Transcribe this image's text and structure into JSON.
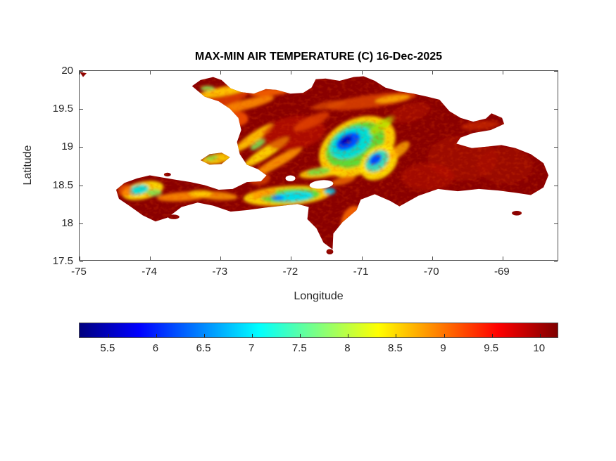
{
  "figure": {
    "background": "#FFFFFF",
    "text_color": "#262626",
    "axis_color": "#4D4D4D"
  },
  "chart_data": {
    "type": "heatmap",
    "title": "MAX-MIN AIR TEMPERATURE (C) 16-Dec-2025",
    "xlabel": "Longitude",
    "ylabel": "Latitude",
    "xlim": [
      -75,
      -68.2
    ],
    "ylim": [
      17.5,
      20
    ],
    "xticks": [
      -75,
      -74,
      -73,
      -72,
      -71,
      -70,
      -69
    ],
    "yticks": [
      17.5,
      18,
      18.5,
      19,
      19.5,
      20
    ],
    "grid": false,
    "region": "Hispaniola (Haiti and Dominican Republic)",
    "units": "C",
    "colorbar": {
      "orientation": "horizontal",
      "colormap": "jet",
      "clim": [
        5.2,
        10.2
      ],
      "ticks": [
        5.5,
        6,
        6.5,
        7,
        7.5,
        8,
        8.5,
        9,
        9.5,
        10
      ],
      "stops": [
        {
          "pos": 0,
          "color": "#00007F"
        },
        {
          "pos": 0.125,
          "color": "#0000FF"
        },
        {
          "pos": 0.25,
          "color": "#0080FF"
        },
        {
          "pos": 0.375,
          "color": "#00FFFF"
        },
        {
          "pos": 0.5,
          "color": "#80FF80"
        },
        {
          "pos": 0.625,
          "color": "#FFFF00"
        },
        {
          "pos": 0.75,
          "color": "#FF8000"
        },
        {
          "pos": 0.875,
          "color": "#FF0000"
        },
        {
          "pos": 1,
          "color": "#7F0000"
        }
      ]
    },
    "sampled_values": [
      {
        "lon": -71.2,
        "lat": 19.08,
        "value": 5.4,
        "note": "Cordillera Central cold core (dark blue)"
      },
      {
        "lon": -70.8,
        "lat": 18.82,
        "value": 6.1,
        "note": "secondary blue core"
      },
      {
        "lon": -71.95,
        "lat": 18.35,
        "value": 6.9,
        "note": "Selle-Bahoruco range cyan band"
      },
      {
        "lon": -74.15,
        "lat": 18.42,
        "value": 7.0,
        "note": "western peninsula cyan patch"
      },
      {
        "lon": -71.05,
        "lat": 19.0,
        "value": 8.3,
        "note": "yellow-green mountain halo"
      },
      {
        "lon": -72.4,
        "lat": 19.0,
        "value": 8.6,
        "note": "yellow ridge streaks"
      },
      {
        "lon": -73.0,
        "lat": 19.65,
        "value": 9.2,
        "note": "orange northern ridges"
      },
      {
        "lon": -70.0,
        "lat": 18.8,
        "value": 10.0,
        "note": "lowlands dark red (>=10)"
      }
    ],
    "map": {
      "base_color": "#8A0000",
      "speckle_color": "#E84A00",
      "lake_color": "#FFFFFF",
      "polygons": {
        "main": [
          [
            -73.4,
            19.8
          ],
          [
            -73.28,
            19.88
          ],
          [
            -73.1,
            19.92
          ],
          [
            -72.98,
            19.88
          ],
          [
            -72.85,
            19.77
          ],
          [
            -72.7,
            19.72
          ],
          [
            -72.52,
            19.7
          ],
          [
            -72.35,
            19.76
          ],
          [
            -72.2,
            19.75
          ],
          [
            -72.0,
            19.7
          ],
          [
            -71.82,
            19.71
          ],
          [
            -71.7,
            19.78
          ],
          [
            -71.64,
            19.89
          ],
          [
            -71.5,
            19.9
          ],
          [
            -71.3,
            19.87
          ],
          [
            -71.1,
            19.92
          ],
          [
            -70.96,
            19.93
          ],
          [
            -70.8,
            19.87
          ],
          [
            -70.65,
            19.78
          ],
          [
            -70.45,
            19.73
          ],
          [
            -70.25,
            19.7
          ],
          [
            -70.05,
            19.66
          ],
          [
            -69.88,
            19.62
          ],
          [
            -69.74,
            19.47
          ],
          [
            -69.58,
            19.38
          ],
          [
            -69.4,
            19.33
          ],
          [
            -69.22,
            19.37
          ],
          [
            -69.14,
            19.44
          ],
          [
            -68.99,
            19.38
          ],
          [
            -68.96,
            19.3
          ],
          [
            -69.15,
            19.22
          ],
          [
            -69.4,
            19.18
          ],
          [
            -69.58,
            19.12
          ],
          [
            -69.64,
            19.04
          ],
          [
            -69.42,
            18.98
          ],
          [
            -69.2,
            19.0
          ],
          [
            -69.0,
            19.02
          ],
          [
            -68.8,
            18.98
          ],
          [
            -68.58,
            18.9
          ],
          [
            -68.4,
            18.78
          ],
          [
            -68.33,
            18.62
          ],
          [
            -68.4,
            18.46
          ],
          [
            -68.58,
            18.36
          ],
          [
            -68.8,
            18.39
          ],
          [
            -69.05,
            18.42
          ],
          [
            -69.32,
            18.44
          ],
          [
            -69.62,
            18.41
          ],
          [
            -69.9,
            18.44
          ],
          [
            -70.18,
            18.35
          ],
          [
            -70.45,
            18.21
          ],
          [
            -70.58,
            18.28
          ],
          [
            -70.8,
            18.37
          ],
          [
            -71.0,
            18.3
          ],
          [
            -71.06,
            18.16
          ],
          [
            -71.26,
            18.0
          ],
          [
            -71.39,
            17.85
          ],
          [
            -71.4,
            17.64
          ],
          [
            -71.53,
            17.73
          ],
          [
            -71.63,
            17.92
          ],
          [
            -71.76,
            18.04
          ],
          [
            -71.74,
            18.2
          ],
          [
            -71.9,
            18.24
          ],
          [
            -72.1,
            18.22
          ],
          [
            -72.38,
            18.19
          ],
          [
            -72.62,
            18.16
          ],
          [
            -72.85,
            18.14
          ],
          [
            -73.1,
            18.22
          ],
          [
            -73.32,
            18.26
          ],
          [
            -73.55,
            18.2
          ],
          [
            -73.75,
            18.06
          ],
          [
            -73.92,
            18.01
          ],
          [
            -74.1,
            18.09
          ],
          [
            -74.28,
            18.21
          ],
          [
            -74.44,
            18.31
          ],
          [
            -74.48,
            18.43
          ],
          [
            -74.36,
            18.52
          ],
          [
            -74.18,
            18.58
          ],
          [
            -74.0,
            18.62
          ],
          [
            -73.82,
            18.59
          ],
          [
            -73.62,
            18.56
          ],
          [
            -73.42,
            18.53
          ],
          [
            -73.22,
            18.49
          ],
          [
            -73.02,
            18.43
          ],
          [
            -72.82,
            18.44
          ],
          [
            -72.62,
            18.53
          ],
          [
            -72.42,
            18.54
          ],
          [
            -72.34,
            18.62
          ],
          [
            -72.46,
            18.7
          ],
          [
            -72.62,
            18.76
          ],
          [
            -72.72,
            18.9
          ],
          [
            -72.76,
            19.06
          ],
          [
            -72.7,
            19.22
          ],
          [
            -72.74,
            19.38
          ],
          [
            -72.86,
            19.5
          ],
          [
            -73.02,
            19.6
          ],
          [
            -73.22,
            19.66
          ]
        ],
        "gonave": [
          [
            -73.28,
            18.82
          ],
          [
            -73.15,
            18.9
          ],
          [
            -72.98,
            18.92
          ],
          [
            -72.86,
            18.86
          ],
          [
            -72.98,
            18.77
          ],
          [
            -73.15,
            18.76
          ]
        ],
        "speck": [
          [
            -75.0,
            19.99
          ],
          [
            -74.9,
            19.97
          ],
          [
            -74.95,
            19.92
          ]
        ]
      },
      "islets": [
        {
          "name": "saona",
          "lon": -68.78,
          "lat": 18.12,
          "rx": 0.07,
          "ry": 0.03
        },
        {
          "name": "beata",
          "lon": -71.44,
          "lat": 17.61,
          "rx": 0.05,
          "ry": 0.035
        },
        {
          "name": "ile-a-vache",
          "lon": -73.66,
          "lat": 18.07,
          "rx": 0.08,
          "ry": 0.03
        },
        {
          "name": "cayemites",
          "lon": -73.75,
          "lat": 18.63,
          "rx": 0.05,
          "ry": 0.025
        }
      ],
      "lakes": [
        [
          -71.56,
          18.5,
          0.17,
          0.055,
          -5
        ],
        [
          -72.0,
          18.58,
          0.07,
          0.04,
          0
        ]
      ],
      "blobs": [
        [
          -73.05,
          19.63,
          0.5,
          0.14,
          -18,
          "#E04000",
          0.85
        ],
        [
          -72.95,
          19.73,
          0.38,
          0.055,
          -10,
          "#FFC800",
          0.95
        ],
        [
          -73.18,
          19.77,
          0.1,
          0.035,
          0,
          "#90E050",
          0.9
        ],
        [
          -72.62,
          19.56,
          0.4,
          0.065,
          -14,
          "#FF8C00",
          0.9
        ],
        [
          -72.3,
          19.72,
          0.28,
          0.05,
          -5,
          "#FF6A00",
          0.85
        ],
        [
          -72.76,
          19.37,
          0.16,
          0.1,
          0,
          "#FF5A00",
          0.8
        ],
        [
          -72.52,
          19.12,
          0.34,
          0.065,
          -35,
          "#FFC000",
          0.95
        ],
        [
          -72.34,
          18.93,
          0.38,
          0.07,
          -33,
          "#FFD700",
          0.95
        ],
        [
          -72.46,
          19.03,
          0.13,
          0.045,
          -35,
          "#80DC50",
          0.9
        ],
        [
          -72.18,
          18.8,
          0.4,
          0.065,
          -30,
          "#FF9900",
          0.9
        ],
        [
          -71.95,
          19.18,
          0.45,
          0.22,
          -10,
          "#C81800",
          0.55
        ],
        [
          -70.85,
          19.6,
          0.65,
          0.085,
          -8,
          "#E04800",
          0.8
        ],
        [
          -70.55,
          19.63,
          0.25,
          0.045,
          -8,
          "#FFB000",
          0.85
        ],
        [
          -71.45,
          19.55,
          0.25,
          0.05,
          -10,
          "#E05000",
          0.7
        ],
        [
          -71.7,
          19.33,
          0.28,
          0.07,
          -25,
          "#E84800",
          0.75
        ],
        [
          -71.05,
          19.0,
          0.58,
          0.36,
          -28,
          "#FFD700",
          0.95
        ],
        [
          -71.08,
          19.02,
          0.45,
          0.27,
          -28,
          "#58D838",
          0.95
        ],
        [
          -71.14,
          19.05,
          0.32,
          0.185,
          -28,
          "#00DCDC",
          0.95
        ],
        [
          -71.18,
          19.07,
          0.185,
          0.1,
          -28,
          "#0048FF",
          0.95
        ],
        [
          -71.21,
          19.08,
          0.095,
          0.05,
          -28,
          "#0000BE",
          0.95
        ],
        [
          -70.7,
          19.28,
          0.22,
          0.06,
          -35,
          "#B0E000",
          0.8
        ],
        [
          -70.74,
          18.79,
          0.3,
          0.2,
          -40,
          "#FFE000",
          0.95
        ],
        [
          -70.77,
          18.81,
          0.19,
          0.12,
          -40,
          "#30D8C0",
          0.95
        ],
        [
          -70.79,
          18.83,
          0.1,
          0.06,
          -40,
          "#0040FF",
          0.95
        ],
        [
          -70.45,
          18.95,
          0.18,
          0.07,
          -40,
          "#FFB000",
          0.8
        ],
        [
          -71.55,
          18.66,
          0.33,
          0.07,
          -8,
          "#FFD000",
          0.9
        ],
        [
          -71.6,
          18.67,
          0.17,
          0.045,
          -8,
          "#70DC40",
          0.9
        ],
        [
          -71.25,
          18.55,
          0.18,
          0.05,
          -15,
          "#FF8000",
          0.7
        ],
        [
          -72.05,
          18.35,
          0.62,
          0.13,
          -4,
          "#FFD700",
          0.95
        ],
        [
          -72.0,
          18.35,
          0.42,
          0.095,
          -4,
          "#58D838",
          0.95
        ],
        [
          -71.95,
          18.34,
          0.27,
          0.065,
          -4,
          "#00DCF0",
          0.95
        ],
        [
          -72.18,
          18.32,
          0.09,
          0.035,
          0,
          "#0080FF",
          0.9
        ],
        [
          -71.44,
          18.41,
          0.08,
          0.045,
          0,
          "#00C8F0",
          0.85
        ],
        [
          -72.38,
          18.38,
          0.18,
          0.05,
          -8,
          "#FF9900",
          0.85
        ],
        [
          -74.1,
          18.42,
          0.3,
          0.115,
          -12,
          "#FFE000",
          0.95
        ],
        [
          -74.16,
          18.43,
          0.145,
          0.065,
          -12,
          "#00DCDC",
          0.95
        ],
        [
          -73.94,
          18.39,
          0.11,
          0.045,
          0,
          "#80DC50",
          0.9
        ],
        [
          -73.52,
          18.34,
          0.38,
          0.06,
          -4,
          "#FF8C00",
          0.9
        ],
        [
          -73.05,
          18.35,
          0.3,
          0.055,
          4,
          "#FF9900",
          0.85
        ],
        [
          -73.28,
          18.38,
          0.17,
          0.045,
          0,
          "#FFD000",
          0.85
        ],
        [
          -71.12,
          18.0,
          0.16,
          0.22,
          15,
          "#FF7000",
          0.85
        ],
        [
          -71.08,
          17.93,
          0.07,
          0.09,
          10,
          "#FFC800",
          0.8
        ],
        [
          -69.55,
          18.85,
          0.5,
          0.3,
          0,
          "#B01000",
          0.5
        ],
        [
          -68.95,
          18.75,
          0.4,
          0.24,
          0,
          "#B01000",
          0.45
        ],
        [
          -70.05,
          18.6,
          0.38,
          0.18,
          0,
          "#C01800",
          0.45
        ],
        [
          -69.3,
          19.28,
          0.28,
          0.055,
          -5,
          "#D83000",
          0.6
        ],
        [
          -70.3,
          19.45,
          0.3,
          0.12,
          -15,
          "#B81400",
          0.5
        ],
        [
          -73.05,
          18.84,
          0.22,
          0.07,
          -10,
          "#FFD700",
          0.9
        ],
        [
          -73.12,
          18.85,
          0.09,
          0.035,
          -10,
          "#80D840",
          0.85
        ],
        [
          -72.45,
          18.58,
          0.16,
          0.09,
          0,
          "#E04800",
          0.7
        ],
        [
          -74.35,
          18.42,
          0.1,
          0.08,
          0,
          "#FF6A00",
          0.7
        ]
      ]
    }
  }
}
